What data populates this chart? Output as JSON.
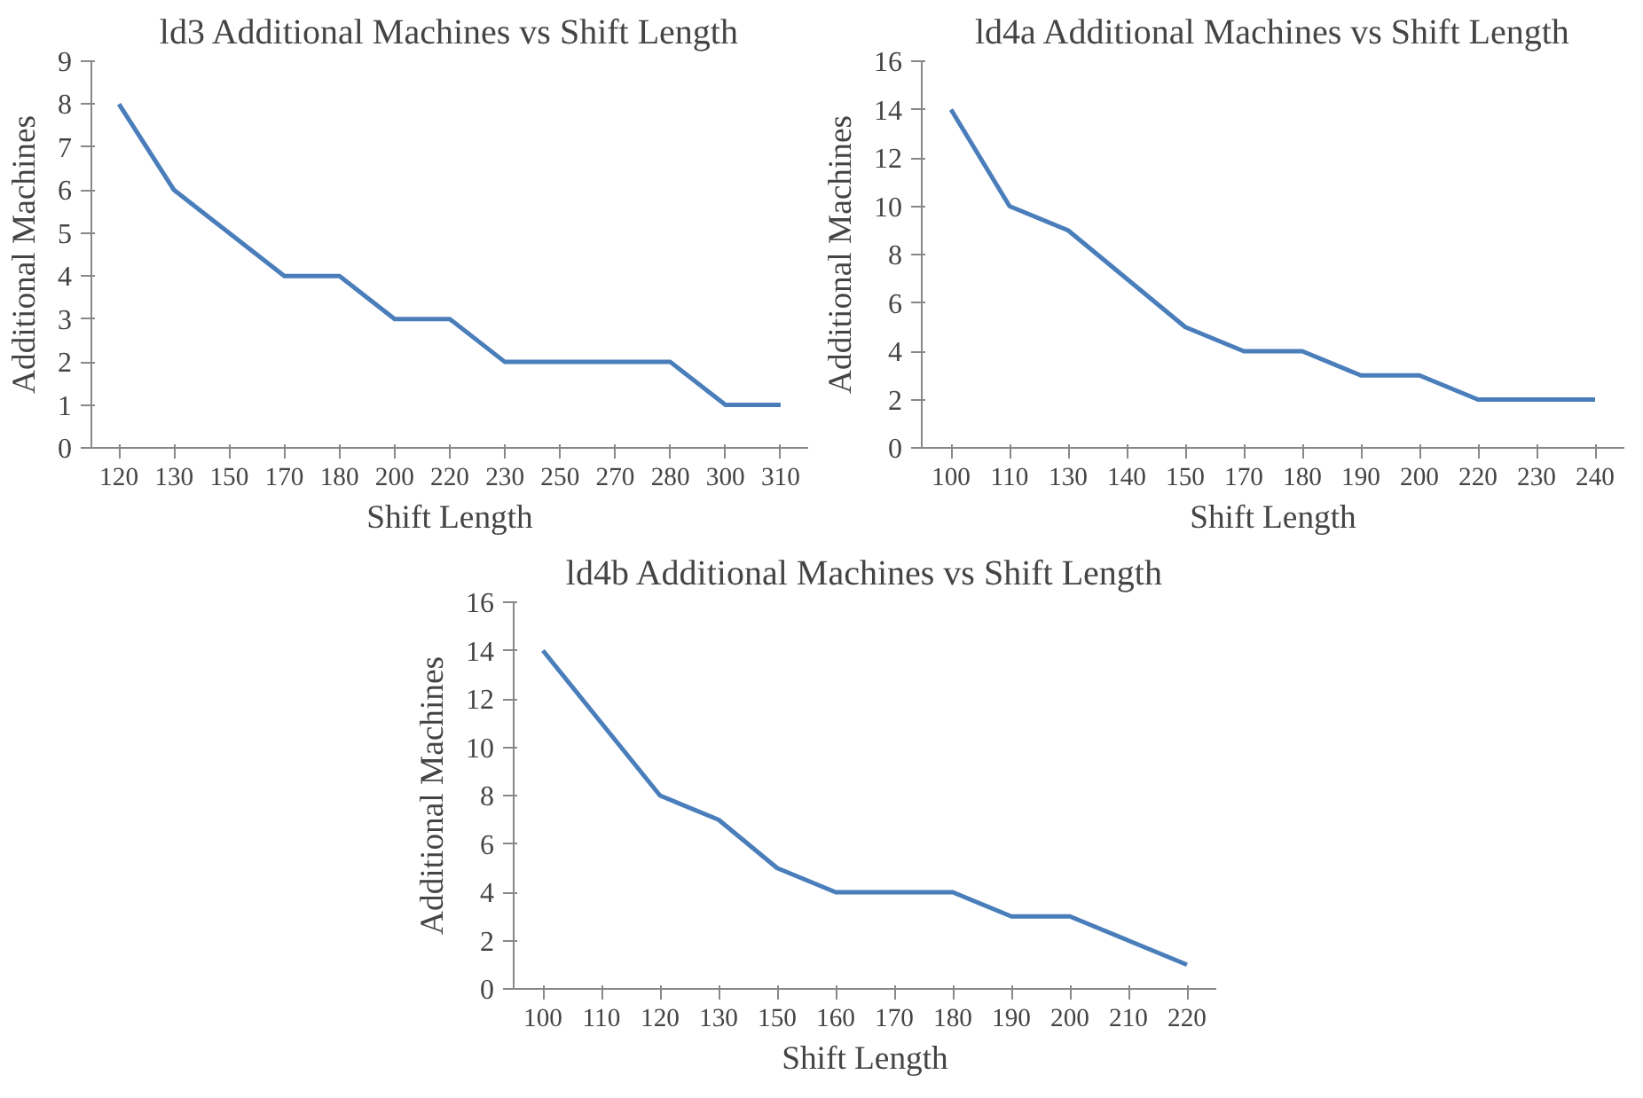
{
  "chart_data": [
    {
      "type": "line",
      "title": "ld3 Additional Machines vs Shift Length",
      "xlabel": "Shift Length",
      "ylabel": "Additional Machines",
      "categories": [
        "120",
        "130",
        "150",
        "170",
        "180",
        "200",
        "220",
        "230",
        "250",
        "270",
        "280",
        "300",
        "310"
      ],
      "series": [
        {
          "color": "#4a7ebb",
          "values": [
            8,
            6,
            5,
            4,
            4,
            3,
            3,
            2,
            2,
            2,
            2,
            1,
            1
          ]
        }
      ],
      "ylim": [
        0,
        9
      ],
      "yticks": [
        0,
        1,
        2,
        3,
        4,
        5,
        6,
        7,
        8,
        9
      ],
      "grid": false
    },
    {
      "type": "line",
      "title": "ld4a Additional Machines vs Shift Length",
      "xlabel": "Shift Length",
      "ylabel": "Additional Machines",
      "categories": [
        "100",
        "110",
        "130",
        "140",
        "150",
        "170",
        "180",
        "190",
        "200",
        "220",
        "230",
        "240"
      ],
      "series": [
        {
          "color": "#4a7ebb",
          "values": [
            14,
            10,
            9,
            7,
            5,
            4,
            4,
            3,
            3,
            2,
            2,
            2
          ]
        }
      ],
      "ylim": [
        0,
        16
      ],
      "yticks": [
        0,
        2,
        4,
        6,
        8,
        10,
        12,
        14,
        16
      ],
      "grid": false
    },
    {
      "type": "line",
      "title": "ld4b Additional Machines vs Shift Length",
      "xlabel": "Shift Length",
      "ylabel": "Additional Machines",
      "categories": [
        "100",
        "110",
        "120",
        "130",
        "150",
        "160",
        "170",
        "180",
        "190",
        "200",
        "210",
        "220"
      ],
      "series": [
        {
          "color": "#4a7ebb",
          "values": [
            14,
            11,
            8,
            7,
            5,
            4,
            4,
            4,
            3,
            3,
            2,
            1
          ]
        }
      ],
      "ylim": [
        0,
        16
      ],
      "yticks": [
        0,
        2,
        4,
        6,
        8,
        10,
        12,
        14,
        16
      ],
      "grid": false
    }
  ]
}
